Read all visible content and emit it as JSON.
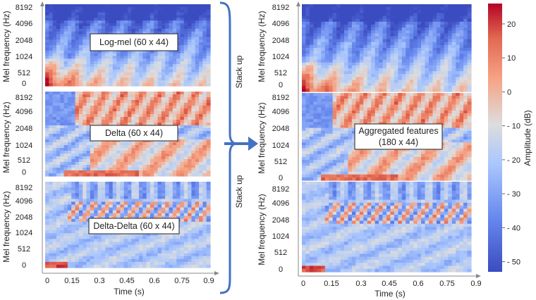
{
  "left_panels": [
    {
      "id": "logmel",
      "label": "Log-mel (60 x 44)"
    },
    {
      "id": "delta",
      "label": "Delta (60 x 44)"
    },
    {
      "id": "deltadelta",
      "label": "Delta-Delta (60 x 44)"
    }
  ],
  "y_axis_label": "Mel frequency (Hz)",
  "y_ticks": [
    "8192",
    "4096",
    "2048",
    "1024",
    "512",
    "0"
  ],
  "x_axis_label": "Time (s)",
  "x_ticks": [
    "0",
    "0.15",
    "0.3",
    "0.45",
    "0.6",
    "0.75",
    "0.9"
  ],
  "stack_labels": [
    "Stack up",
    "Stack up"
  ],
  "right_panel": {
    "label_line1": "Aggregated features",
    "label_line2": "(180 x 44)"
  },
  "colorbar": {
    "label": "Amplitude (dB)",
    "ticks": [
      "20",
      "10",
      "0",
      "- 10",
      "- 20",
      "- 30",
      "- 40",
      "- 50"
    ],
    "range": [
      -53,
      26
    ],
    "colors": {
      "low": "#3b4cc0",
      "mid": "#dddddd",
      "high": "#b40426"
    }
  },
  "arrow_color": "#4472c4"
}
